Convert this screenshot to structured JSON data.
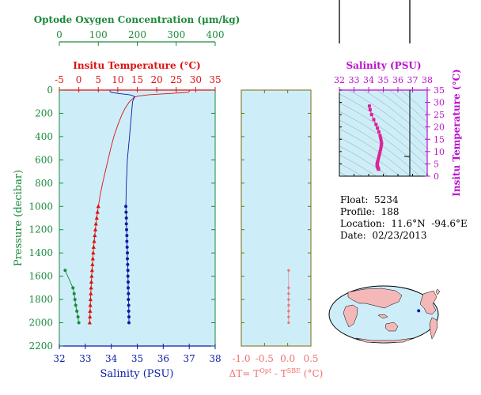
{
  "colors": {
    "oxygen": "#1a8a3a",
    "temperature": "#dd1111",
    "salinity": "#0a1aa8",
    "delta": "#f07070",
    "ts": "#dd2299",
    "panel_bg": "#cdeef8",
    "olive_axis": "#7a6a10",
    "land": "#f5b8b8",
    "ocean": "#cdeef8"
  },
  "info": {
    "float": "Float:  5234",
    "profile": "Profile:  188",
    "location": "Location:  11.6°N  -94.6°E",
    "date": "Date:  02/23/2013"
  },
  "chart_data": [
    {
      "id": "main-profile",
      "type": "line",
      "ylabel": "Pressure (decibar)",
      "ylim": [
        2200,
        0
      ],
      "yticks": [
        0,
        200,
        400,
        600,
        800,
        1000,
        1200,
        1400,
        1600,
        1800,
        2000,
        2200
      ],
      "grid": false,
      "axes": {
        "oxygen": {
          "label": "Optode Oxygen Concentration (μm/kg)",
          "lim": [
            0,
            400
          ],
          "ticks": [
            0,
            100,
            200,
            300,
            400
          ]
        },
        "temperature": {
          "label": "Insitu Temperature (°C)",
          "lim": [
            -5,
            35
          ],
          "ticks": [
            -5,
            0,
            5,
            10,
            15,
            20,
            25,
            30,
            35
          ]
        },
        "salinity": {
          "label": "Salinity (PSU)",
          "lim": [
            32,
            38
          ],
          "ticks": [
            32,
            33,
            34,
            35,
            36,
            37,
            38
          ]
        }
      },
      "series": [
        {
          "axis": "temperature",
          "line_p": [
            0,
            10,
            20,
            30,
            40,
            50,
            60,
            70,
            80,
            100,
            150,
            200,
            300,
            400,
            500,
            600,
            700,
            800,
            900,
            1000
          ],
          "line_v": [
            28.5,
            28.4,
            28.0,
            23.0,
            18.0,
            15.5,
            14.2,
            14.0,
            13.6,
            13.0,
            12.0,
            11.2,
            10.0,
            9.0,
            8.2,
            7.5,
            6.8,
            6.1,
            5.5,
            5.0
          ],
          "points_p": [
            1000,
            1050,
            1100,
            1150,
            1200,
            1250,
            1300,
            1350,
            1400,
            1450,
            1500,
            1550,
            1600,
            1650,
            1700,
            1750,
            1800,
            1850,
            1900,
            1950,
            2000
          ],
          "points_v": [
            5.0,
            4.8,
            4.6,
            4.4,
            4.25,
            4.1,
            3.95,
            3.8,
            3.7,
            3.6,
            3.5,
            3.4,
            3.3,
            3.22,
            3.15,
            3.08,
            3.0,
            2.95,
            2.9,
            2.85,
            2.8
          ]
        },
        {
          "axis": "salinity",
          "line_p": [
            0,
            10,
            20,
            30,
            40,
            50,
            60,
            70,
            80,
            100,
            150,
            200,
            300,
            400,
            500,
            600,
            700,
            800,
            900,
            1000
          ],
          "line_v": [
            33.95,
            33.95,
            34.0,
            34.3,
            34.7,
            34.85,
            34.9,
            34.88,
            34.85,
            34.82,
            34.8,
            34.78,
            34.74,
            34.7,
            34.66,
            34.62,
            34.6,
            34.58,
            34.57,
            34.56
          ],
          "points_p": [
            1000,
            1050,
            1100,
            1150,
            1200,
            1250,
            1300,
            1350,
            1400,
            1450,
            1500,
            1550,
            1600,
            1650,
            1700,
            1750,
            1800,
            1850,
            1900,
            1950,
            2000
          ],
          "points_v": [
            34.56,
            34.57,
            34.58,
            34.58,
            34.59,
            34.6,
            34.6,
            34.61,
            34.62,
            34.62,
            34.63,
            34.64,
            34.64,
            34.65,
            34.65,
            34.66,
            34.66,
            34.67,
            34.67,
            34.68,
            34.68
          ]
        },
        {
          "axis": "oxygen",
          "points_p": [
            1550,
            1700,
            1750,
            1800,
            1850,
            1900,
            1950,
            2000
          ],
          "points_v": [
            15,
            35,
            38,
            40,
            42,
            45,
            48,
            50
          ]
        }
      ]
    },
    {
      "id": "delta-t",
      "type": "scatter",
      "xlabel": "ΔT= T^Opt - T^SBE (°C)",
      "xlim": [
        -1.0,
        0.5
      ],
      "xticks": [
        -1.0,
        -0.5,
        0.0,
        0.5
      ],
      "ylim": [
        2200,
        0
      ],
      "p": [
        1550,
        1700,
        1750,
        1800,
        1850,
        1900,
        1950,
        2000
      ],
      "v": [
        0.02,
        0.02,
        0.02,
        0.02,
        0.02,
        0.02,
        0.02,
        0.02
      ]
    },
    {
      "id": "ts-diagram",
      "type": "scatter",
      "xlabel": "Salinity (PSU)",
      "ylabel": "Insitu Temperature (°C)",
      "xlim": [
        32,
        38
      ],
      "ylim": [
        0,
        35
      ],
      "xticks": [
        32,
        33,
        34,
        35,
        36,
        37,
        38
      ],
      "yticks": [
        0,
        5,
        10,
        15,
        20,
        25,
        30,
        35
      ],
      "s": [
        34.05,
        34.1,
        34.2,
        34.35,
        34.5,
        34.6,
        34.7,
        34.78,
        34.82,
        34.85,
        34.88,
        34.88,
        34.85,
        34.82,
        34.78,
        34.74,
        34.7,
        34.66,
        34.62,
        34.6,
        34.58,
        34.57,
        34.58,
        34.6,
        34.62,
        34.64,
        34.66,
        34.68
      ],
      "t": [
        28.5,
        27.0,
        25.0,
        23.0,
        21.0,
        19.5,
        18.0,
        16.5,
        15.5,
        14.5,
        13.5,
        13.0,
        12.0,
        11.0,
        10.0,
        9.0,
        8.0,
        7.0,
        6.0,
        5.5,
        5.0,
        4.7,
        4.3,
        4.0,
        3.6,
        3.3,
        3.0,
        2.8
      ]
    },
    {
      "id": "location-map",
      "type": "map",
      "marker": {
        "lat": 11.6,
        "lon": -94.6
      }
    }
  ]
}
